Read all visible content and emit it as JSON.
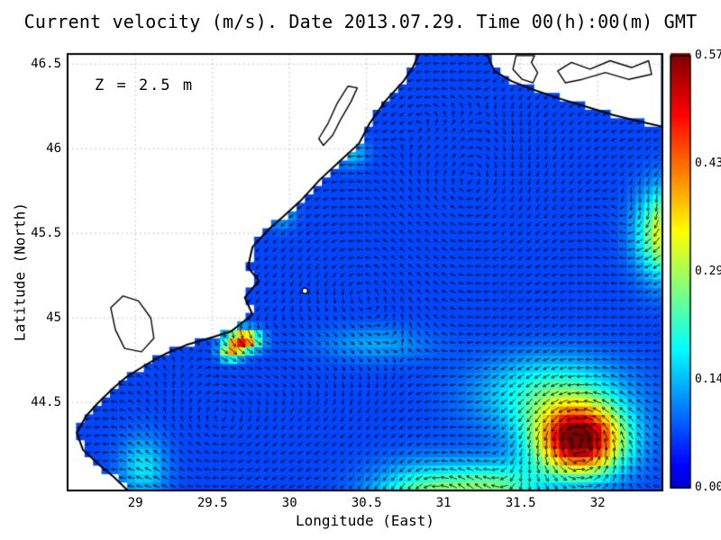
{
  "chart_data": {
    "type": "heatmap",
    "subtype": "ocean-current-vector-field",
    "title": "Current velocity (m/s). Date 2013.07.29. Time 00(h):00(m) GMT",
    "annotation": "Z = 2.5 m",
    "xlabel": "Longitude (East)",
    "ylabel": "Latitude (North)",
    "xlim": [
      28.56,
      32.42
    ],
    "ylim": [
      43.98,
      46.56
    ],
    "xticks": {
      "values": [
        29,
        29.5,
        30,
        30.5,
        31,
        31.5,
        32
      ],
      "labels": [
        "29",
        "29.5",
        "30",
        "30.5",
        "31",
        "31.5",
        "32"
      ]
    },
    "yticks": {
      "values": [
        44.5,
        45,
        45.5,
        46,
        46.5
      ],
      "labels": [
        "44.5",
        "45",
        "45.5",
        "46",
        "46.5"
      ]
    },
    "grid": true,
    "colorbar": {
      "min": 0,
      "max": 0.57,
      "colormap": "jet",
      "tick_labels": [
        "0.00",
        "0.14",
        "0.29",
        "0.43",
        "0.57"
      ]
    },
    "colors": {
      "sea_low": "#0045ff",
      "land": "#ffffff",
      "coast": "#000000",
      "arrows": "#000000",
      "gridline": "#b5b5b5"
    },
    "base_speed": 0.07,
    "speed_hotspots": [
      {
        "lon": 29.7,
        "lat": 44.87,
        "sx": 0.1,
        "sy": 0.06,
        "amp": 0.42
      },
      {
        "lon": 29.62,
        "lat": 44.8,
        "sx": 0.07,
        "sy": 0.05,
        "amp": 0.25
      },
      {
        "lon": 31.88,
        "lat": 44.28,
        "sx": 0.28,
        "sy": 0.2,
        "amp": 0.52
      },
      {
        "lon": 31.7,
        "lat": 44.55,
        "sx": 0.45,
        "sy": 0.22,
        "amp": 0.15
      },
      {
        "lon": 32.45,
        "lat": 45.5,
        "sx": 0.18,
        "sy": 0.25,
        "amp": 0.28
      },
      {
        "lon": 29.95,
        "lat": 45.65,
        "sx": 0.08,
        "sy": 0.1,
        "amp": 0.1
      },
      {
        "lon": 30.4,
        "lat": 45.98,
        "sx": 0.1,
        "sy": 0.08,
        "amp": 0.08
      },
      {
        "lon": 29.05,
        "lat": 44.12,
        "sx": 0.15,
        "sy": 0.18,
        "amp": 0.1
      },
      {
        "lon": 30.9,
        "lat": 43.92,
        "sx": 0.35,
        "sy": 0.2,
        "amp": 0.2
      },
      {
        "lon": 31.35,
        "lat": 44.0,
        "sx": 0.3,
        "sy": 0.15,
        "amp": 0.15
      },
      {
        "lon": 30.55,
        "lat": 44.85,
        "sx": 0.35,
        "sy": 0.1,
        "amp": 0.06
      }
    ],
    "flow_uniform": [
      -0.12,
      -0.04
    ],
    "flow_vortices": [
      {
        "lon": 29.55,
        "lat": 44.3,
        "s": -1.2,
        "sig": 0.3
      },
      {
        "lon": 29.85,
        "lat": 44.95,
        "s": 1.0,
        "sig": 0.15
      },
      {
        "lon": 30.45,
        "lat": 45.25,
        "s": 0.9,
        "sig": 0.35
      },
      {
        "lon": 31.15,
        "lat": 45.7,
        "s": -0.9,
        "sig": 0.35
      },
      {
        "lon": 31.85,
        "lat": 44.35,
        "s": 1.4,
        "sig": 0.28
      },
      {
        "lon": 32.25,
        "lat": 45.45,
        "s": -0.8,
        "sig": 0.25
      },
      {
        "lon": 30.15,
        "lat": 44.5,
        "s": -0.7,
        "sig": 0.3
      },
      {
        "lon": 30.9,
        "lat": 46.15,
        "s": 0.7,
        "sig": 0.22
      },
      {
        "lon": 30.9,
        "lat": 44.0,
        "s": 0.8,
        "sig": 0.3
      }
    ],
    "coast_main": [
      [
        28.95,
        43.98
      ],
      [
        28.86,
        44.06
      ],
      [
        28.78,
        44.12
      ],
      [
        28.66,
        44.22
      ],
      [
        28.62,
        44.32
      ],
      [
        28.68,
        44.42
      ],
      [
        28.76,
        44.5
      ],
      [
        28.85,
        44.58
      ],
      [
        28.94,
        44.65
      ],
      [
        29.08,
        44.73
      ],
      [
        29.2,
        44.79
      ],
      [
        29.33,
        44.84
      ],
      [
        29.48,
        44.88
      ],
      [
        29.62,
        44.92
      ],
      [
        29.76,
        45.02
      ],
      [
        29.71,
        45.12
      ],
      [
        29.8,
        45.22
      ],
      [
        29.73,
        45.3
      ],
      [
        29.76,
        45.42
      ],
      [
        29.86,
        45.52
      ],
      [
        29.96,
        45.6
      ],
      [
        30.08,
        45.7
      ],
      [
        30.2,
        45.82
      ],
      [
        30.33,
        45.93
      ],
      [
        30.45,
        46.03
      ],
      [
        30.52,
        46.15
      ],
      [
        30.62,
        46.28
      ],
      [
        30.74,
        46.4
      ],
      [
        30.8,
        46.48
      ],
      [
        30.84,
        46.56
      ]
    ],
    "coast_topright": [
      [
        31.28,
        46.56
      ],
      [
        31.33,
        46.46
      ],
      [
        31.44,
        46.4
      ],
      [
        31.58,
        46.35
      ],
      [
        31.74,
        46.3
      ],
      [
        31.92,
        46.25
      ],
      [
        32.1,
        46.2
      ],
      [
        32.28,
        46.16
      ],
      [
        32.42,
        46.13
      ]
    ],
    "lagoons": [
      [
        [
          28.84,
          45.06
        ],
        [
          28.92,
          45.13
        ],
        [
          29.02,
          45.1
        ],
        [
          29.1,
          45.0
        ],
        [
          29.12,
          44.88
        ],
        [
          29.04,
          44.8
        ],
        [
          28.93,
          44.82
        ],
        [
          28.87,
          44.93
        ]
      ],
      [
        [
          30.22,
          46.02
        ],
        [
          30.28,
          46.08
        ],
        [
          30.33,
          46.17
        ],
        [
          30.4,
          46.28
        ],
        [
          30.44,
          46.36
        ],
        [
          30.38,
          46.37
        ],
        [
          30.31,
          46.27
        ],
        [
          30.25,
          46.15
        ],
        [
          30.19,
          46.06
        ]
      ],
      [
        [
          31.47,
          46.55
        ],
        [
          31.45,
          46.47
        ],
        [
          31.51,
          46.41
        ],
        [
          31.58,
          46.39
        ],
        [
          31.61,
          46.45
        ],
        [
          31.57,
          46.51
        ],
        [
          31.59,
          46.55
        ]
      ],
      [
        [
          31.74,
          46.46
        ],
        [
          31.83,
          46.51
        ],
        [
          31.95,
          46.47
        ],
        [
          32.08,
          46.52
        ],
        [
          32.22,
          46.48
        ],
        [
          32.33,
          46.52
        ],
        [
          32.35,
          46.44
        ],
        [
          32.2,
          46.41
        ],
        [
          32.05,
          46.45
        ],
        [
          31.9,
          46.41
        ],
        [
          31.79,
          46.39
        ]
      ]
    ],
    "islands": [
      {
        "lon": 30.1,
        "lat": 45.16
      }
    ]
  }
}
